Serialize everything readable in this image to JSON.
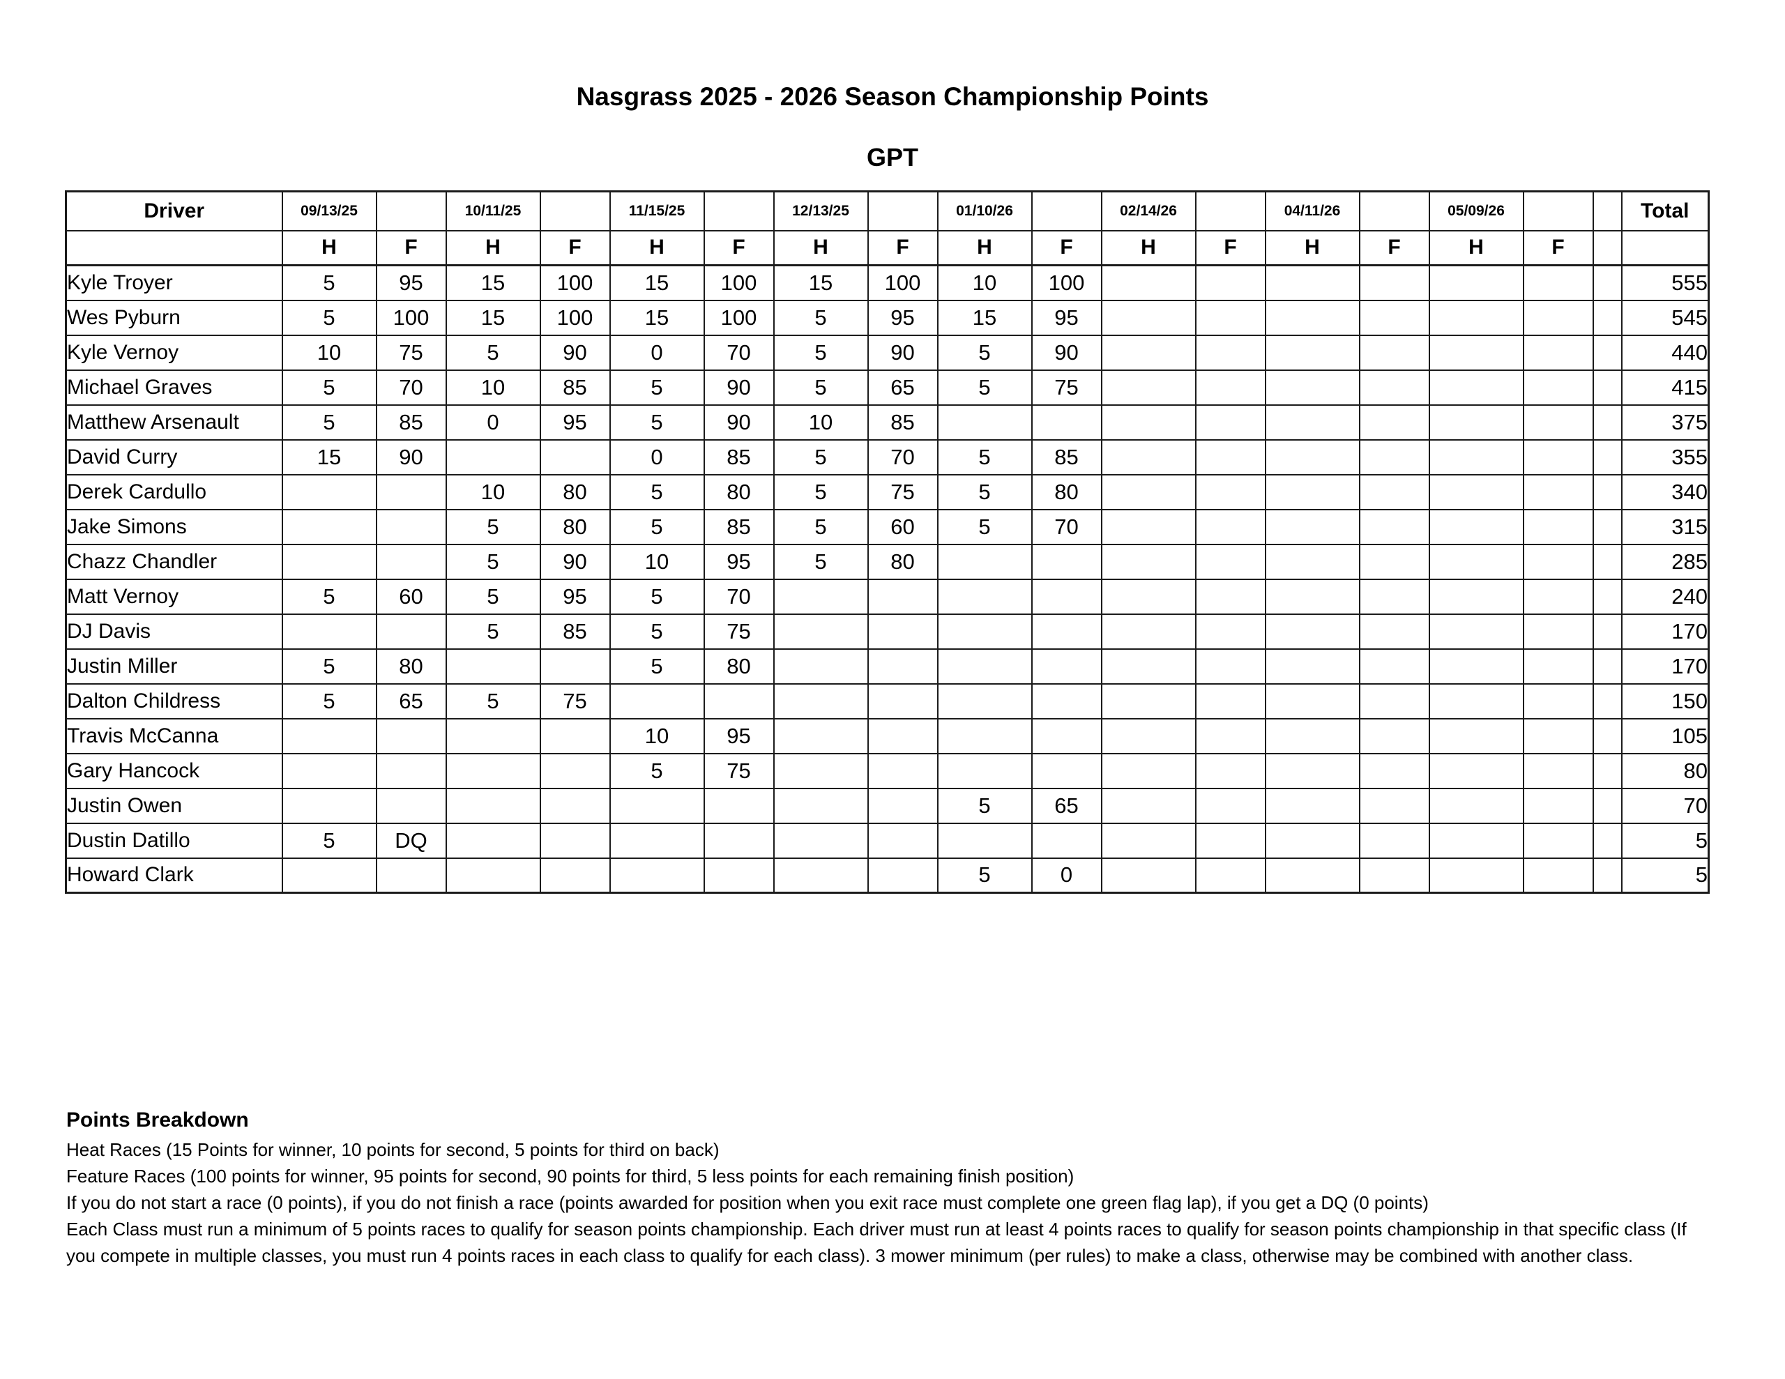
{
  "page": {
    "title": "Nasgrass 2025 - 2026 Season Championship Points",
    "subtitle": "GPT"
  },
  "table": {
    "driver_header": "Driver",
    "total_header": "Total",
    "heat_label": "H",
    "feature_label": "F",
    "dates": [
      "09/13/25",
      "10/11/25",
      "11/15/25",
      "12/13/25",
      "01/10/26",
      "02/14/26",
      "04/11/26",
      "05/09/26"
    ],
    "rows": [
      {
        "driver": "Kyle Troyer",
        "cells": [
          "5",
          "95",
          "15",
          "100",
          "15",
          "100",
          "15",
          "100",
          "10",
          "100",
          "",
          "",
          "",
          "",
          "",
          ""
        ],
        "total": "555"
      },
      {
        "driver": "Wes Pyburn",
        "cells": [
          "5",
          "100",
          "15",
          "100",
          "15",
          "100",
          "5",
          "95",
          "15",
          "95",
          "",
          "",
          "",
          "",
          "",
          ""
        ],
        "total": "545"
      },
      {
        "driver": "Kyle Vernoy",
        "cells": [
          "10",
          "75",
          "5",
          "90",
          "0",
          "70",
          "5",
          "90",
          "5",
          "90",
          "",
          "",
          "",
          "",
          "",
          ""
        ],
        "total": "440"
      },
      {
        "driver": "Michael Graves",
        "cells": [
          "5",
          "70",
          "10",
          "85",
          "5",
          "90",
          "5",
          "65",
          "5",
          "75",
          "",
          "",
          "",
          "",
          "",
          ""
        ],
        "total": "415"
      },
      {
        "driver": "Matthew Arsenault",
        "cells": [
          "5",
          "85",
          "0",
          "95",
          "5",
          "90",
          "10",
          "85",
          "",
          "",
          "",
          "",
          "",
          "",
          "",
          ""
        ],
        "total": "375"
      },
      {
        "driver": "David Curry",
        "cells": [
          "15",
          "90",
          "",
          "",
          "0",
          "85",
          "5",
          "70",
          "5",
          "85",
          "",
          "",
          "",
          "",
          "",
          ""
        ],
        "total": "355"
      },
      {
        "driver": "Derek Cardullo",
        "cells": [
          "",
          "",
          "10",
          "80",
          "5",
          "80",
          "5",
          "75",
          "5",
          "80",
          "",
          "",
          "",
          "",
          "",
          ""
        ],
        "total": "340"
      },
      {
        "driver": "Jake Simons",
        "cells": [
          "",
          "",
          "5",
          "80",
          "5",
          "85",
          "5",
          "60",
          "5",
          "70",
          "",
          "",
          "",
          "",
          "",
          ""
        ],
        "total": "315"
      },
      {
        "driver": "Chazz Chandler",
        "cells": [
          "",
          "",
          "5",
          "90",
          "10",
          "95",
          "5",
          "80",
          "",
          "",
          "",
          "",
          "",
          "",
          "",
          ""
        ],
        "total": "285"
      },
      {
        "driver": "Matt Vernoy",
        "cells": [
          "5",
          "60",
          "5",
          "95",
          "5",
          "70",
          "",
          "",
          "",
          "",
          "",
          "",
          "",
          "",
          "",
          ""
        ],
        "total": "240"
      },
      {
        "driver": "DJ Davis",
        "cells": [
          "",
          "",
          "5",
          "85",
          "5",
          "75",
          "",
          "",
          "",
          "",
          "",
          "",
          "",
          "",
          "",
          ""
        ],
        "total": "170"
      },
      {
        "driver": "Justin Miller",
        "cells": [
          "5",
          "80",
          "",
          "",
          "5",
          "80",
          "",
          "",
          "",
          "",
          "",
          "",
          "",
          "",
          "",
          ""
        ],
        "total": "170"
      },
      {
        "driver": "Dalton Childress",
        "cells": [
          "5",
          "65",
          "5",
          "75",
          "",
          "",
          "",
          "",
          "",
          "",
          "",
          "",
          "",
          "",
          "",
          ""
        ],
        "total": "150"
      },
      {
        "driver": "Travis McCanna",
        "cells": [
          "",
          "",
          "",
          "",
          "10",
          "95",
          "",
          "",
          "",
          "",
          "",
          "",
          "",
          "",
          "",
          ""
        ],
        "total": "105"
      },
      {
        "driver": "Gary Hancock",
        "cells": [
          "",
          "",
          "",
          "",
          "5",
          "75",
          "",
          "",
          "",
          "",
          "",
          "",
          "",
          "",
          "",
          ""
        ],
        "total": "80"
      },
      {
        "driver": "Justin Owen",
        "cells": [
          "",
          "",
          "",
          "",
          "",
          "",
          "",
          "",
          "5",
          "65",
          "",
          "",
          "",
          "",
          "",
          ""
        ],
        "total": "70"
      },
      {
        "driver": "Dustin Datillo",
        "cells": [
          "5",
          "DQ",
          "",
          "",
          "",
          "",
          "",
          "",
          "",
          "",
          "",
          "",
          "",
          "",
          "",
          ""
        ],
        "total": "5"
      },
      {
        "driver": "Howard Clark",
        "cells": [
          "",
          "",
          "",
          "",
          "",
          "",
          "",
          "",
          "5",
          "0",
          "",
          "",
          "",
          "",
          "",
          ""
        ],
        "total": "5"
      }
    ]
  },
  "breakdown": {
    "heading": "Points Breakdown",
    "lines": [
      "Heat Races (15 Points for winner, 10 points for second, 5 points for third on back)",
      "Feature Races (100 points for winner, 95 points for second, 90 points for third, 5 less points for each remaining finish position)",
      "If you do not start a race (0 points), if you do not finish a race (points awarded for position when you exit race must complete one green flag lap), if you get a DQ (0 points)",
      "Each Class must run a minimum of 5 points races to qualify for season points championship. Each driver must run at least 4 points races to qualify for season points championship in that specific class (If you compete in multiple classes, you must run 4 points races in each class to qualify for each class). 3 mower minimum (per rules) to make a class, otherwise may be combined with another class."
    ]
  }
}
